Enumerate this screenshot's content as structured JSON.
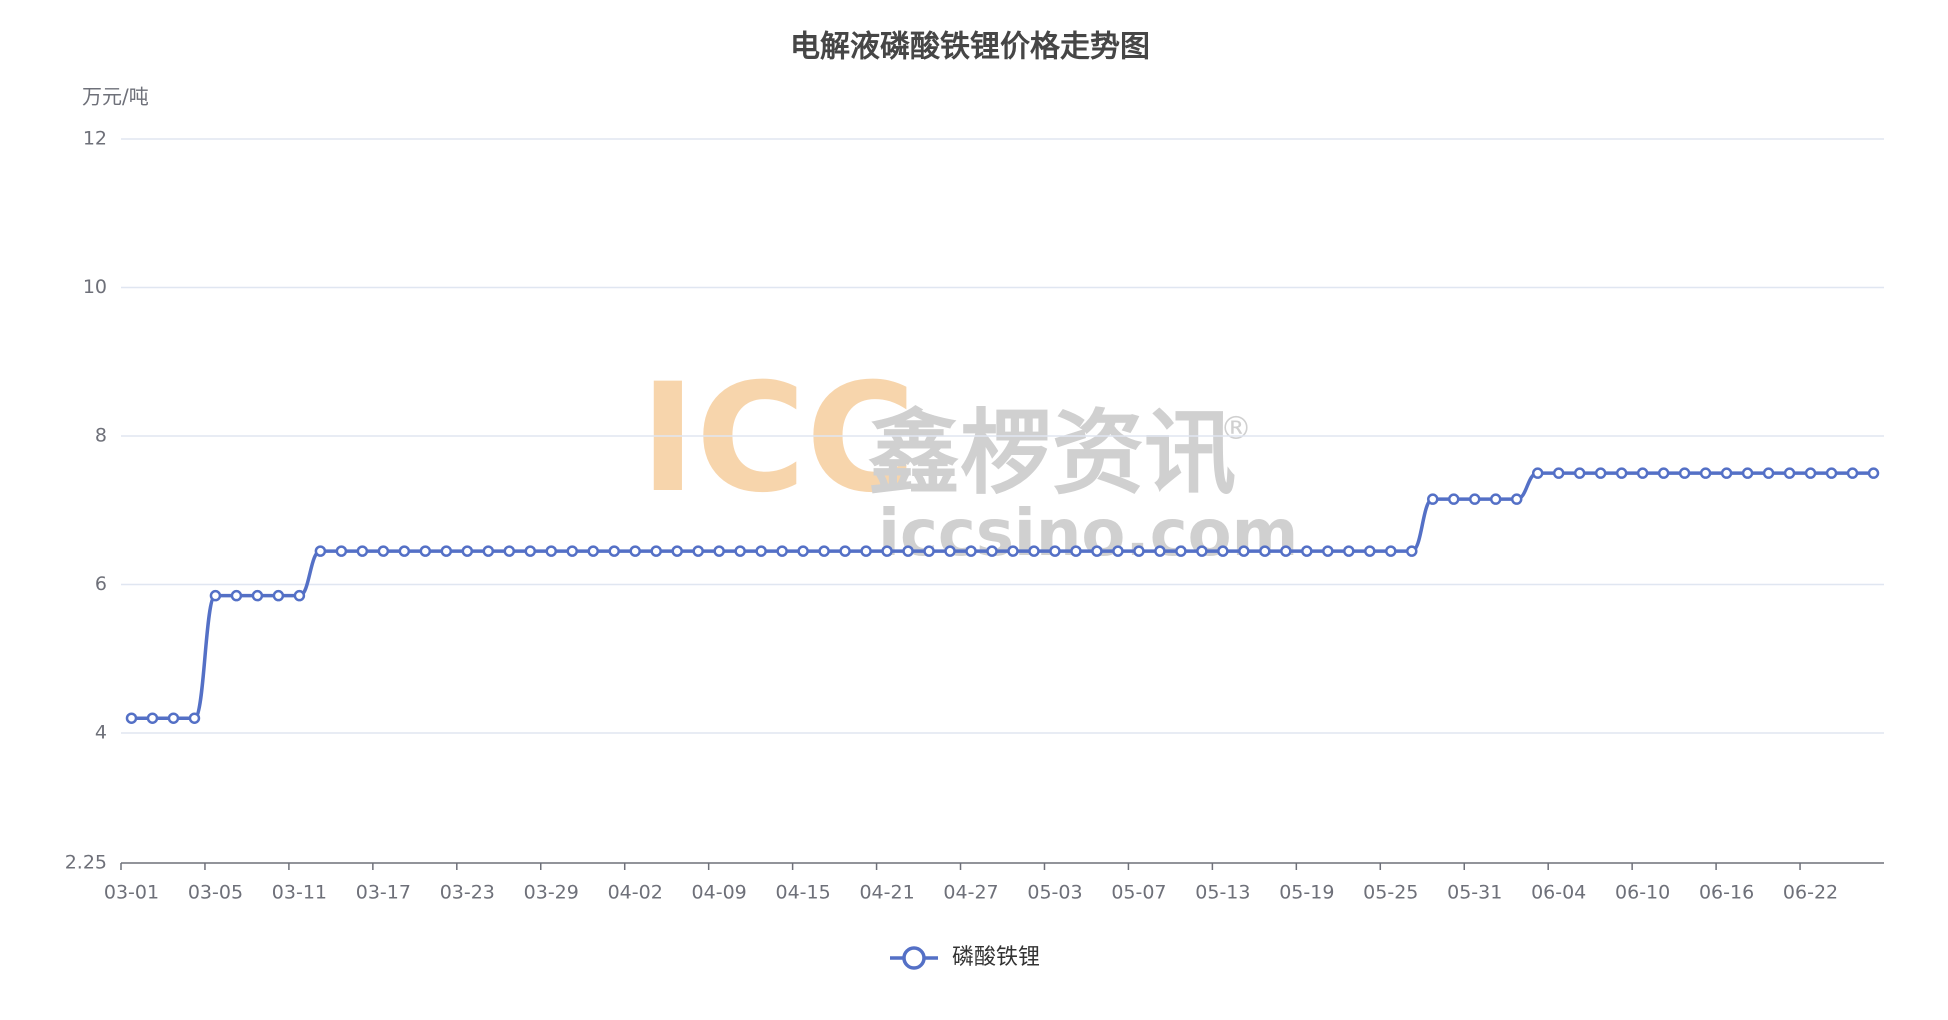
{
  "chart_data": {
    "type": "line",
    "title": "电解液磷酸铁锂价格走势图",
    "y_axis_label": "万元/吨",
    "watermark": {
      "logo": "ICC",
      "name": "鑫椤资讯",
      "site": "iccsino.com",
      "mark": "®"
    },
    "categories": [
      "03-01",
      null,
      null,
      null,
      "03-05",
      null,
      null,
      null,
      "03-11",
      null,
      null,
      null,
      "03-17",
      null,
      null,
      null,
      "03-23",
      null,
      null,
      null,
      "03-29",
      null,
      null,
      null,
      "04-02",
      null,
      null,
      null,
      "04-09",
      null,
      null,
      null,
      "04-15",
      null,
      null,
      null,
      "04-21",
      null,
      null,
      null,
      "04-27",
      null,
      null,
      null,
      "05-03",
      null,
      null,
      null,
      "05-07",
      null,
      null,
      null,
      "05-13",
      null,
      null,
      null,
      "05-19",
      null,
      null,
      null,
      "05-25",
      null,
      null,
      null,
      "05-31",
      null,
      null,
      null,
      "06-04",
      null,
      null,
      null,
      "06-10",
      null,
      null,
      null,
      "06-16",
      null,
      null,
      null,
      "06-22",
      null,
      null,
      null
    ],
    "series": [
      {
        "name": "磷酸铁锂",
        "color": "#5470c6",
        "values": [
          4.2,
          4.2,
          4.2,
          4.2,
          5.85,
          5.85,
          5.85,
          5.85,
          5.85,
          6.45,
          6.45,
          6.45,
          6.45,
          6.45,
          6.45,
          6.45,
          6.45,
          6.45,
          6.45,
          6.45,
          6.45,
          6.45,
          6.45,
          6.45,
          6.45,
          6.45,
          6.45,
          6.45,
          6.45,
          6.45,
          6.45,
          6.45,
          6.45,
          6.45,
          6.45,
          6.45,
          6.45,
          6.45,
          6.45,
          6.45,
          6.45,
          6.45,
          6.45,
          6.45,
          6.45,
          6.45,
          6.45,
          6.45,
          6.45,
          6.45,
          6.45,
          6.45,
          6.45,
          6.45,
          6.45,
          6.45,
          6.45,
          6.45,
          6.45,
          6.45,
          6.45,
          6.45,
          7.15,
          7.15,
          7.15,
          7.15,
          7.15,
          7.5,
          7.5,
          7.5,
          7.5,
          7.5,
          7.5,
          7.5,
          7.5,
          7.5,
          7.5,
          7.5,
          7.5,
          7.5,
          7.5,
          7.5,
          7.5,
          7.5
        ]
      }
    ],
    "ylim": [
      2.25,
      12
    ],
    "yticks": [
      2.25,
      4,
      6,
      8,
      10,
      12
    ],
    "grid": true,
    "legend": "bottom"
  }
}
